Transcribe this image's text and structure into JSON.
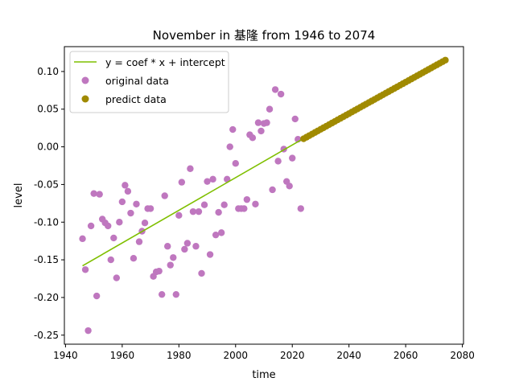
{
  "chart_data": {
    "type": "scatter",
    "title": "November in 基隆 from 1946 to 2074",
    "xlabel": "time",
    "ylabel": "level",
    "xlim": [
      1939.6,
      2080.4
    ],
    "ylim": [
      -0.262,
      0.133
    ],
    "x_ticks": [
      1940,
      1960,
      1980,
      2000,
      2020,
      2040,
      2060,
      2080
    ],
    "x_tick_labels": [
      "1940",
      "1960",
      "1980",
      "2000",
      "2020",
      "2040",
      "2060",
      "2080"
    ],
    "y_ticks": [
      0.1,
      0.05,
      0.0,
      -0.05,
      -0.1,
      -0.15,
      -0.2,
      -0.25
    ],
    "y_tick_labels": [
      "0.10",
      "0.05",
      "0.00",
      "-0.05",
      "-0.10",
      "-0.15",
      "-0.20",
      "-0.25"
    ],
    "grid": false,
    "legend_position": "top-left",
    "legend": [
      {
        "label": "y = coef * x + intercept",
        "kind": "line",
        "color": "#7fbf00"
      },
      {
        "label": "original data",
        "kind": "marker",
        "color": "#bf77bf"
      },
      {
        "label": "predict data",
        "kind": "marker",
        "color": "#a08a00"
      }
    ],
    "series": [
      {
        "name": "y = coef * x + intercept",
        "kind": "line",
        "color": "#7fbf00",
        "x": [
          1946,
          2023
        ],
        "y": [
          -0.158,
          0.009
        ]
      },
      {
        "name": "original data",
        "kind": "scatter",
        "color": "#bf77bf",
        "x": [
          1946,
          1947,
          1948,
          1949,
          1950,
          1951,
          1952,
          1953,
          1954,
          1955,
          1956,
          1957,
          1958,
          1959,
          1960,
          1961,
          1962,
          1963,
          1964,
          1965,
          1966,
          1967,
          1968,
          1969,
          1970,
          1971,
          1972,
          1973,
          1974,
          1975,
          1976,
          1977,
          1978,
          1979,
          1980,
          1981,
          1982,
          1983,
          1984,
          1985,
          1986,
          1987,
          1988,
          1989,
          1990,
          1991,
          1992,
          1993,
          1994,
          1995,
          1996,
          1997,
          1998,
          1999,
          2000,
          2001,
          2002,
          2003,
          2004,
          2005,
          2006,
          2007,
          2008,
          2009,
          2010,
          2011,
          2012,
          2013,
          2014,
          2015,
          2016,
          2017,
          2018,
          2019,
          2020,
          2021,
          2022,
          2023
        ],
        "y": [
          -0.122,
          -0.163,
          -0.244,
          -0.105,
          -0.062,
          -0.198,
          -0.063,
          -0.096,
          -0.101,
          -0.105,
          -0.15,
          -0.121,
          -0.174,
          -0.1,
          -0.073,
          -0.051,
          -0.059,
          -0.088,
          -0.148,
          -0.076,
          -0.126,
          -0.112,
          -0.101,
          -0.082,
          -0.082,
          -0.172,
          -0.166,
          -0.165,
          -0.196,
          -0.065,
          -0.132,
          -0.157,
          -0.147,
          -0.196,
          -0.091,
          -0.047,
          -0.136,
          -0.128,
          -0.029,
          -0.086,
          -0.132,
          -0.086,
          -0.168,
          -0.077,
          -0.046,
          -0.143,
          -0.043,
          -0.117,
          -0.087,
          -0.114,
          -0.077,
          -0.043,
          0.0,
          0.023,
          -0.022,
          -0.082,
          -0.082,
          -0.082,
          -0.07,
          0.016,
          0.012,
          -0.076,
          0.032,
          0.021,
          0.031,
          0.032,
          0.05,
          -0.057,
          0.076,
          -0.019,
          0.07,
          -0.003,
          -0.046,
          -0.052,
          -0.015,
          0.037,
          0.01,
          -0.082
        ]
      },
      {
        "name": "predict data",
        "kind": "scatter",
        "color": "#a08a00",
        "x_start": 2024,
        "x_end": 2074,
        "y_start": 0.0107,
        "y_end": 0.1151
      }
    ]
  }
}
